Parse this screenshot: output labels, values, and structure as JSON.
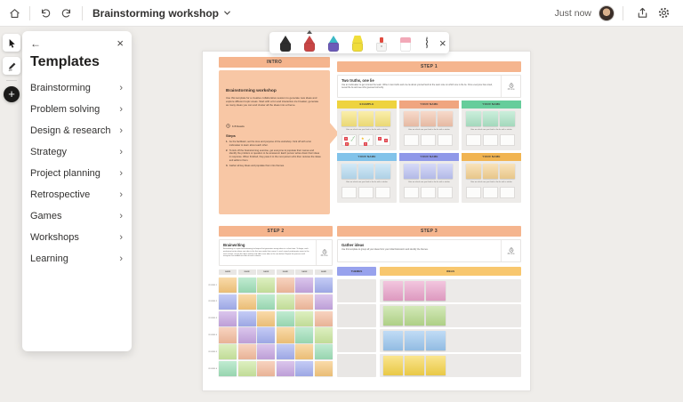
{
  "glyphs": {
    "back": "←",
    "close": "×",
    "chevron_right": "›",
    "plus": "+"
  },
  "topbar": {
    "title": "Brainstorming workshop",
    "saved_status": "Just now"
  },
  "templates_panel": {
    "title": "Templates",
    "items": [
      "Brainstorming",
      "Problem solving",
      "Design & research",
      "Strategy",
      "Project planning",
      "Retrospective",
      "Games",
      "Workshops",
      "Learning"
    ]
  },
  "pen_toolbar": {
    "pens": [
      {
        "name": "black-marker",
        "type": "marker",
        "tip": "#2e2e2e",
        "body": "#2e2e2e"
      },
      {
        "name": "red-marker",
        "type": "marker",
        "tip": "#c84545",
        "body": "#c84545",
        "raised": true
      },
      {
        "name": "galaxy-marker",
        "type": "marker",
        "tip": "#3cb9c6",
        "body": "#6c5bb8"
      },
      {
        "name": "yellow-highlighter",
        "type": "highlighter",
        "tip": "#f0dd3a",
        "body": "#f0dd3a"
      },
      {
        "name": "laser-pointer",
        "type": "laser",
        "tip": "#e04b3f",
        "body": "#f4f4f3"
      },
      {
        "name": "eraser",
        "type": "eraser",
        "tip": "#f2a9b8",
        "body": "#ffffff"
      }
    ]
  },
  "boards": {
    "intro": {
      "header": "INTRO",
      "title": "Brainstorming workshop",
      "description": "Use this template for a creative collaborative session to generate new ideas and explore different topic areas. Start with a fun and interactive ice breaker, generate as many ideas you can and cluster all the ideas into a theme.",
      "duration": "1.5 hours",
      "steps_title": "Steps",
      "steps": [
        "As the facilitator, set the tone and purpose of the workshop. Kick off with a fun icebreaker to learn about each other.",
        "To kick off the brainstorming exercise, get everyone to populate their names and identify the problem or question to be answered. Each person writes down their ideas in response. When finished, they pass it to the next person who then reviews the ideas and adds to them.",
        "Gather all key ideas and populate them into themes."
      ]
    },
    "step1": {
      "header": "STEP 1",
      "card_title": "Two truths, one lie",
      "card_description": "Use an icebreaker to get to know the team. Write in two truths and one lie about yourself and let the team vote on which one is the lie. Once everyone has voted, reveal the lie and see who guessed correctly.",
      "duration": "15 mins",
      "vote_caption": "Vote on which one you think is the lie with a sticker",
      "columns": [
        {
          "label": "EXAMPLE",
          "header_color": "#EED33F",
          "note_color": "#F7E47A",
          "stickers": [
            [
              "x",
              "check",
              "star",
              "check",
              "x"
            ],
            [
              "star",
              "check",
              "x"
            ],
            [
              "x",
              "x"
            ]
          ]
        },
        {
          "label": "YOUR NAME",
          "header_color": "#F0A57F",
          "note_color": "#F2C3AB"
        },
        {
          "label": "YOUR NAME",
          "header_color": "#66CD9B",
          "note_color": "#ACE4C6"
        },
        {
          "label": "YOUR NAME",
          "header_color": "#82C3EA",
          "note_color": "#B8DCF2"
        },
        {
          "label": "YOUR NAME",
          "header_color": "#8F98E9",
          "note_color": "#BDC3F3"
        },
        {
          "label": "YOUR NAME",
          "header_color": "#F1B451",
          "note_color": "#F4D191"
        }
      ]
    },
    "step2": {
      "header": "STEP 2",
      "card_title": "Brainwriting",
      "card_description": "Brainwriting is a quiet brainstorming technique that generates many ideas in a short time. To begin, each participant writes down one idea in the first row under their name. In each round, participants move to the next column, review the ideas written and add a new idea in the row below. Repeat the process until everyone has added one idea to each column.",
      "duration": "45 mins",
      "name_label": "NAME",
      "round_labels": [
        "ROUND 1",
        "ROUND 2",
        "ROUND 3",
        "ROUND 4",
        "ROUND 5",
        "ROUND 6"
      ],
      "palette": [
        "#F6C77C",
        "#9FE0B9",
        "#CBE79F",
        "#F4BC9E",
        "#C7A7E2",
        "#A5B0F0"
      ],
      "grid": [
        [
          0,
          1,
          2,
          3,
          4,
          5
        ],
        [
          5,
          0,
          1,
          2,
          3,
          4
        ],
        [
          4,
          5,
          0,
          1,
          2,
          3
        ],
        [
          3,
          4,
          5,
          0,
          1,
          2
        ],
        [
          2,
          3,
          4,
          5,
          0,
          1
        ],
        [
          1,
          2,
          3,
          4,
          5,
          0
        ]
      ]
    },
    "step3": {
      "header": "STEP 3",
      "card_title": "Gather ideas",
      "card_description": "Use this template to group all your ideas from your initial brainstorm and identify the themes.",
      "duration": "30 mins",
      "themes_label": "THEMES",
      "ideas_label": "IDEAS",
      "themes_color": "#98A2ED",
      "ideas_color": "#F8C76E",
      "rows": [
        {
          "note_color": "#EBA3CB"
        },
        {
          "note_color": "#B9DC8E"
        },
        {
          "note_color": "#9BC7F0"
        },
        {
          "note_color": "#F7D54A"
        }
      ]
    }
  }
}
